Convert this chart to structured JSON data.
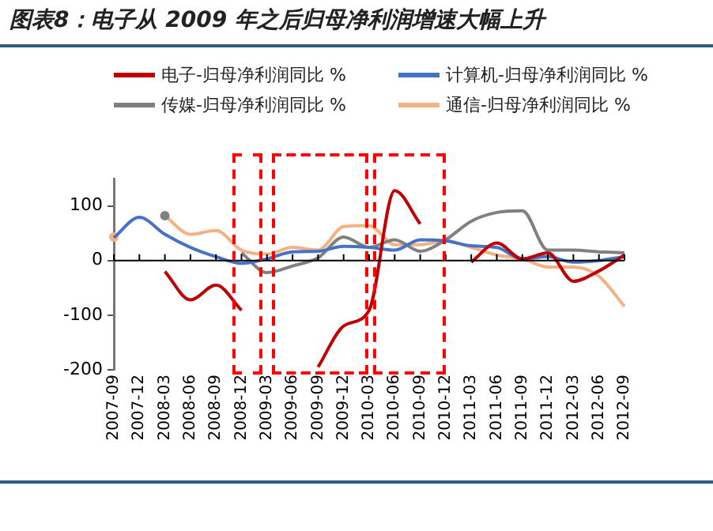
{
  "chart_data": {
    "type": "line",
    "title": "图表8：电子从 2009 年之后归母净利润增速大幅上升",
    "categories": [
      "2007-09",
      "2007-12",
      "2008-03",
      "2008-06",
      "2008-09",
      "2008-12",
      "2009-03",
      "2009-06",
      "2009-09",
      "2009-12",
      "2010-03",
      "2010-06",
      "2010-09",
      "2010-12",
      "2011-03",
      "2011-06",
      "2011-09",
      "2011-12",
      "2012-03",
      "2012-06",
      "2012-09"
    ],
    "series": [
      {
        "name": "电子-归母净利润同比 %",
        "color": "#c00000",
        "values": [
          null,
          null,
          -20,
          -72,
          -45,
          -91,
          null,
          null,
          -195,
          -120,
          -91,
          128,
          67,
          null,
          -3,
          32,
          3,
          14,
          -38,
          -19,
          10
        ]
      },
      {
        "name": "计算机-归母净利润同比 %",
        "color": "#4472c4",
        "values": [
          42,
          79,
          48,
          24,
          7,
          -5,
          3,
          16,
          17,
          26,
          24,
          19,
          38,
          36,
          27,
          24,
          3,
          7,
          -3,
          0,
          7
        ]
      },
      {
        "name": "传媒-归母净利润同比 %",
        "color": "#808080",
        "values": [
          null,
          null,
          82,
          null,
          null,
          14,
          -22,
          -10,
          5,
          43,
          24,
          38,
          17,
          38,
          72,
          88,
          91,
          19,
          19,
          16,
          14
        ]
      },
      {
        "name": "通信-归母净利润同比 %",
        "color": "#f4b183",
        "values": [
          43,
          null,
          82,
          48,
          55,
          19,
          12,
          24,
          19,
          62,
          64,
          29,
          29,
          36,
          24,
          10,
          3,
          -12,
          -12,
          -29,
          -84
        ]
      }
    ],
    "ylim": [
      -200,
      150
    ],
    "yticks": [
      -200,
      -100,
      0,
      100
    ],
    "ref_lines": [
      {
        "axis": "y",
        "value": 0,
        "color": "#000000"
      }
    ],
    "legend": "top",
    "grid": false
  }
}
